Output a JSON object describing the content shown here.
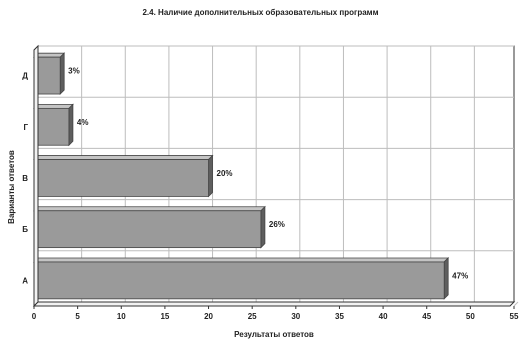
{
  "chart_data": {
    "type": "bar",
    "orientation": "horizontal",
    "title": "2.4. Наличие дополнительных образовательных программ",
    "xlabel": "Результаты ответов",
    "ylabel": "Варианты ответов",
    "categories": [
      "А",
      "Б",
      "В",
      "Г",
      "Д"
    ],
    "values": [
      47,
      26,
      20,
      4,
      3
    ],
    "data_labels": [
      "47%",
      "26%",
      "20%",
      "4%",
      "3%"
    ],
    "xlim": [
      0,
      55
    ],
    "x_ticks": [
      "0",
      "5",
      "10",
      "15",
      "20",
      "25",
      "30",
      "35",
      "40",
      "45",
      "50",
      "55"
    ],
    "grid": true,
    "legend": "none",
    "colors": {
      "bar": "#9a9a9a",
      "bar_side": "#5e5e5e",
      "bar_top": "#c4c4c4",
      "grid": "#bdbdbd",
      "axis": "#333333"
    }
  }
}
